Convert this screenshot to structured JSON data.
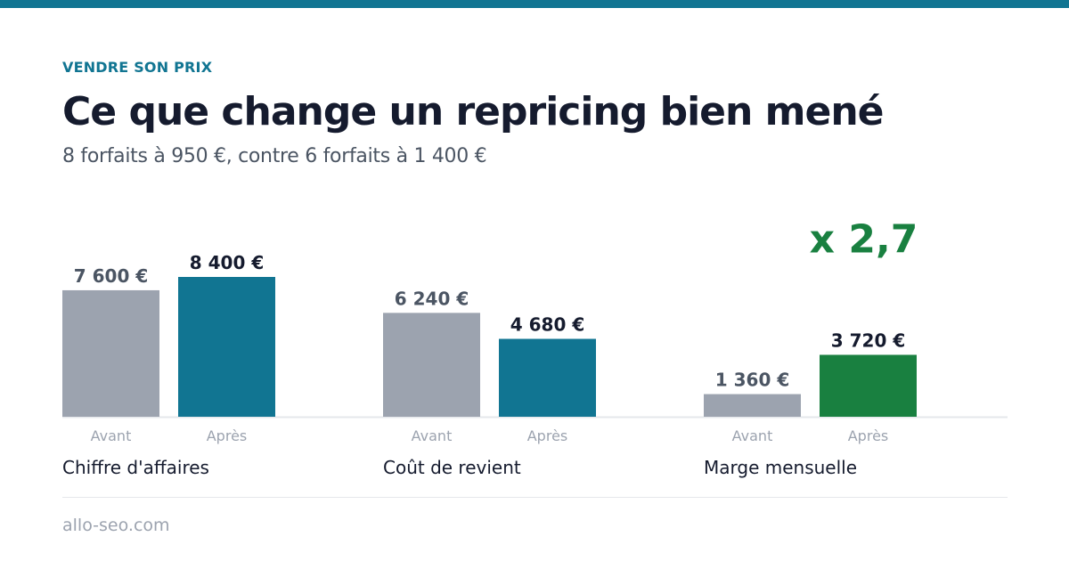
{
  "header": {
    "eyebrow": "VENDRE SON PRIX",
    "title": "Ce que change un repricing bien mené",
    "subtitle": "8 forfaits à 950 €, contre 6 forfaits à 1 400 €"
  },
  "colors": {
    "accent": "#117592",
    "before_bar": "#9ca3af",
    "highlight": "#198040",
    "text_dark": "#151b2e",
    "text_before": "#4b5563"
  },
  "chart_data": {
    "type": "bar",
    "unit": "€",
    "groups": [
      {
        "label": "Chiffre d'affaires",
        "bars": [
          {
            "category": "Avant",
            "value": 7600,
            "value_label": "7 600 €",
            "highlight": false
          },
          {
            "category": "Après",
            "value": 8400,
            "value_label": "8 400 €",
            "highlight": false
          }
        ]
      },
      {
        "label": "Coût de revient",
        "bars": [
          {
            "category": "Avant",
            "value": 6240,
            "value_label": "6 240 €",
            "highlight": false
          },
          {
            "category": "Après",
            "value": 4680,
            "value_label": "4 680 €",
            "highlight": false
          }
        ]
      },
      {
        "label": "Marge mensuelle",
        "bars": [
          {
            "category": "Avant",
            "value": 1360,
            "value_label": "1 360 €",
            "highlight": false
          },
          {
            "category": "Après",
            "value": 3720,
            "value_label": "3 720 €",
            "highlight": true
          }
        ],
        "badge": "x 2,7"
      }
    ]
  },
  "footer": {
    "site": "allo-seo.com"
  }
}
